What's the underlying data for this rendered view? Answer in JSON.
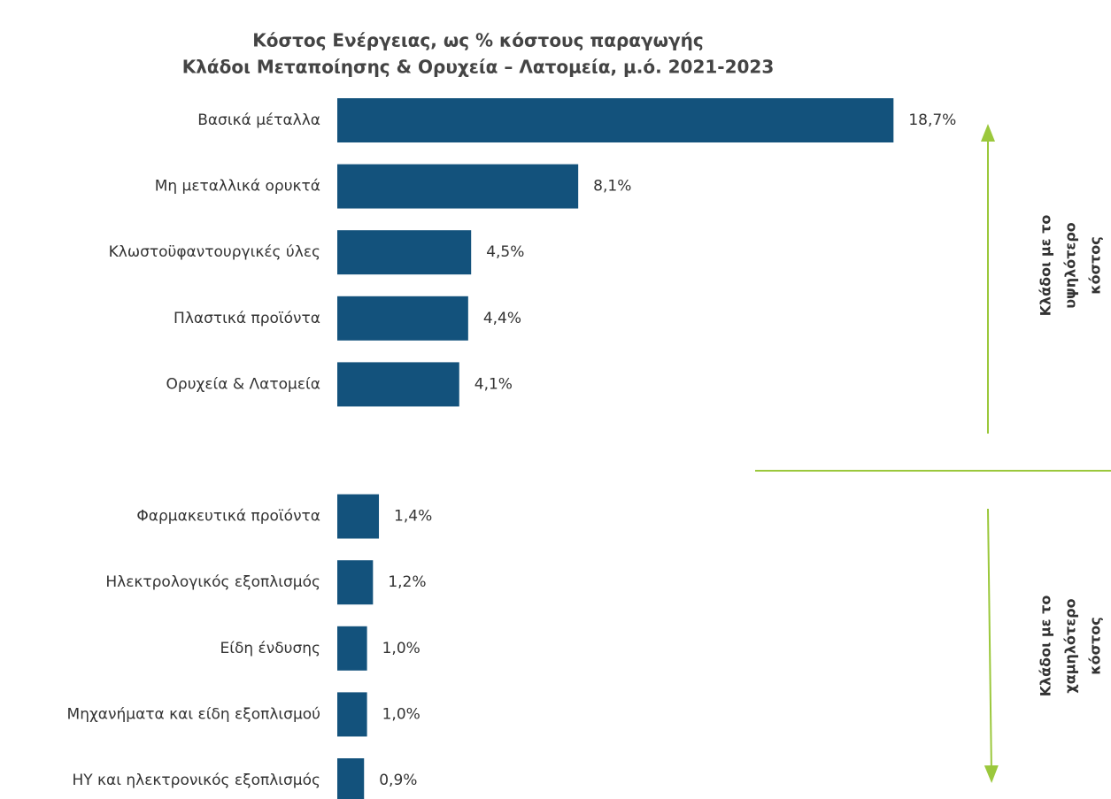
{
  "chart_data": {
    "type": "bar",
    "orientation": "horizontal",
    "title": "Κόστος Ενέργειας, ως % κόστους παραγωγής",
    "subtitle": "Κλάδοι Μεταποίησης & Ορυχεία – Λατομεία, μ.ό. 2021-2023",
    "categories": [
      "Βασικά μέταλλα",
      "Μη μεταλλικά ορυκτά",
      "Κλωστοϋφαντουργικές ύλες",
      "Πλαστικά προϊόντα",
      "Ορυχεία & Λατομεία",
      null,
      "Φαρμακευτικά προϊόντα",
      "Ηλεκτρολογικός εξοπλισμός",
      "Είδη ένδυσης",
      "Μηχανήματα και είδη εξοπλισμού",
      "ΗΥ και ηλεκτρονικός εξοπλισμός"
    ],
    "values": [
      18.7,
      8.1,
      4.5,
      4.4,
      4.1,
      null,
      1.4,
      1.2,
      1.0,
      1.0,
      0.9
    ],
    "value_labels": [
      "18,7%",
      "8,1%",
      "4,5%",
      "4,4%",
      "4,1%",
      null,
      "1,4%",
      "1,2%",
      "1,0%",
      "1,0%",
      "0,9%"
    ],
    "color": "#13527c",
    "xlim": [
      0,
      20
    ],
    "annotations": [
      [
        "Κλάδοι με το",
        "υψηλότερο",
        "κόστος"
      ],
      [
        "Κλάδοι με το",
        "χαμηλότερο",
        "κόστος"
      ]
    ],
    "annotation_color": "#9bc83c"
  }
}
